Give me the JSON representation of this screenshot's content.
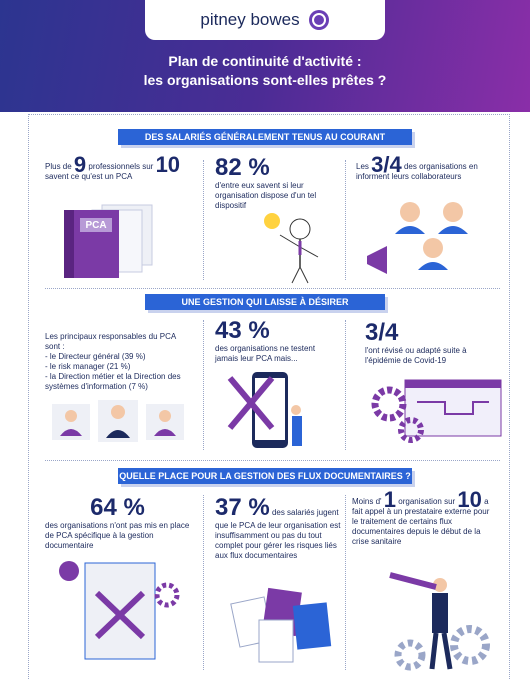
{
  "header": {
    "logo": "pitney bowes",
    "title": [
      "Plan de continuité d'activité :",
      "les organisations sont-elles prêtes ?"
    ]
  },
  "sections": [
    {
      "heading": "DES SALARIÉS GÉNÉRALEMENT TENUS AU COURANT",
      "cells": [
        {
          "parts": [
            "Plus de",
            "9",
            "professionnels sur",
            "10",
            "savent ce qu'est un PCA"
          ],
          "label": "PCA"
        },
        {
          "stat": "82 %",
          "text": "d'entre eux savent si leur organisation dispose d'un tel dispositif"
        },
        {
          "parts": [
            "Les",
            "3/4",
            "des organisations en informent leurs collaborateurs"
          ]
        }
      ]
    },
    {
      "heading": "UNE GESTION QUI LAISSE À DÉSIRER",
      "cells": [
        {
          "intro": "Les principaux responsables du PCA sont :",
          "items": [
            "- le Directeur général (39 %)",
            "- le risk manager (21 %)",
            "- la Direction métier et la Direction des systèmes d'information (7 %)"
          ]
        },
        {
          "stat": "43 %",
          "text": "des organisations ne testent jamais leur PCA mais..."
        },
        {
          "stat": "3/4",
          "text": "l'ont révisé ou adapté suite à l'épidémie de Covid-19"
        }
      ]
    },
    {
      "heading": "QUELLE PLACE POUR LA GESTION DES FLUX DOCUMENTAIRES ?",
      "cells": [
        {
          "stat": "64 %",
          "text": "des organisations n'ont pas mis en place de PCA spécifique à la gestion documentaire"
        },
        {
          "stat": "37 %",
          "text": "des salariés jugent que le PCA de leur organisation est insuffisamment ou pas du tout complet pour gérer les risques liés aux flux documentaires"
        },
        {
          "parts": [
            "Moins d'",
            "1",
            "organisation sur",
            "10",
            "a fait appel à un prestataire externe pour le traitement de certains flux documentaires depuis le début de la crise sanitaire"
          ]
        }
      ]
    }
  ]
}
